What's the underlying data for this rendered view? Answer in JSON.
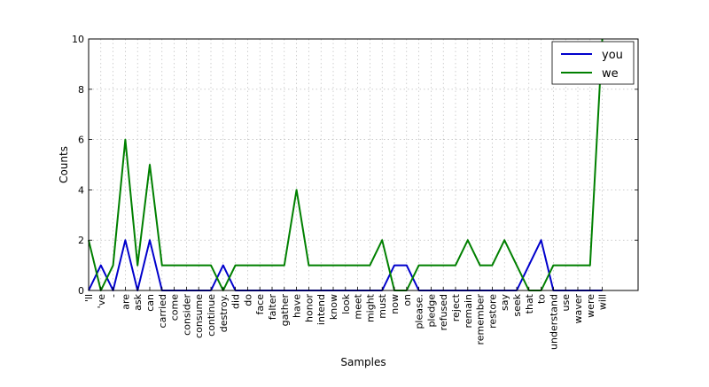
{
  "chart_data": {
    "type": "line",
    "title": "",
    "xlabel": "Samples",
    "ylabel": "Counts",
    "ylim": [
      0,
      10
    ],
    "yticks": [
      "0",
      "2",
      "4",
      "6",
      "8",
      "10"
    ],
    "grid": true,
    "legend_position": "top-right",
    "categories": [
      "'ll",
      "'ve",
      "-",
      "are",
      "ask",
      "can",
      "carried",
      "come",
      "consider",
      "consume",
      "continue",
      "destroy.",
      "did",
      "do",
      "face",
      "falter",
      "gather",
      "have",
      "honor",
      "intend",
      "know",
      "look",
      "meet",
      "might",
      "must",
      "now",
      "on",
      "please.",
      "pledge",
      "refused",
      "reject",
      "remain",
      "remember",
      "restore",
      "say",
      "seek",
      "that",
      "to",
      "understand",
      "use",
      "waver",
      "were",
      "will"
    ],
    "series": [
      {
        "name": "you",
        "color": "#0000cc",
        "values": [
          0,
          1,
          0,
          2,
          0,
          2,
          0,
          0,
          0,
          0,
          0,
          1,
          0,
          0,
          0,
          0,
          0,
          0,
          0,
          0,
          0,
          0,
          0,
          0,
          0,
          1,
          1,
          0,
          0,
          0,
          0,
          0,
          0,
          0,
          0,
          0,
          1,
          2,
          0,
          0,
          0,
          0,
          0
        ]
      },
      {
        "name": "we",
        "color": "#008000",
        "values": [
          2,
          0,
          1,
          6,
          1,
          5,
          1,
          1,
          1,
          1,
          1,
          0,
          1,
          1,
          1,
          1,
          1,
          4,
          1,
          1,
          1,
          1,
          1,
          1,
          2,
          0,
          0,
          1,
          1,
          1,
          1,
          2,
          1,
          1,
          2,
          1,
          0,
          0,
          1,
          1,
          1,
          1,
          10
        ]
      }
    ]
  }
}
